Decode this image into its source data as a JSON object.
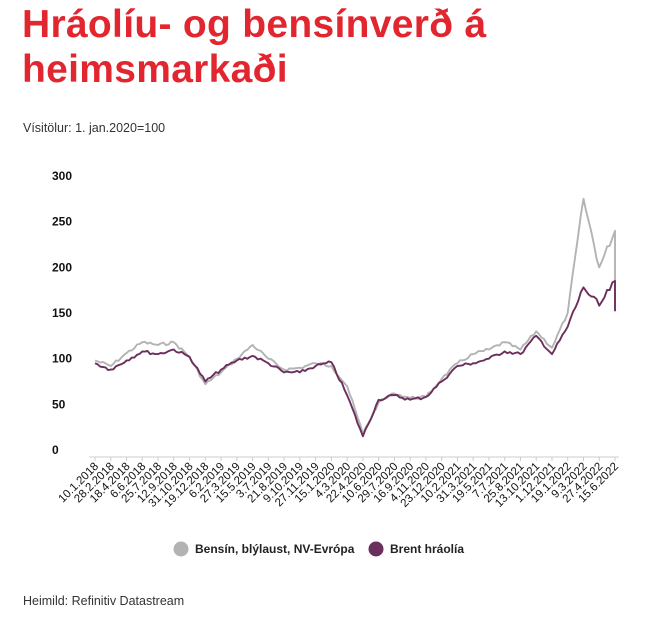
{
  "header": {
    "title": "Hráolíu- og bensínverð á heimsmarkaði",
    "subtitle": "Vísitölur: 1. jan.2020=100"
  },
  "footer": {
    "source": "Heimild: Refinitiv Datastream"
  },
  "colors": {
    "title": "#e2262f",
    "petrol": "#b3b3b3",
    "brent": "#6b2f5b",
    "axis": "#cccccc"
  },
  "chart_data": {
    "type": "line",
    "ylim": [
      0,
      300
    ],
    "yticks": [
      "0",
      "50",
      "100",
      "150",
      "200",
      "250",
      "300"
    ],
    "xlabel": "",
    "ylabel": "",
    "grid": false,
    "legend_position": "bottom-center",
    "x_tick_labels": [
      "10.1.2018",
      "28.2.2018",
      "18.4.2018",
      "6.6.2018",
      "25.7.2018",
      "12.9.2018",
      "31.10.2018",
      "19.12.2018",
      "6.2.2019",
      "27.3.2019",
      "15.5.2019",
      "3.7.2019",
      "21.8.2019",
      "9.10.2019",
      "27.11.2019",
      "15.1.2020",
      "4.3.2020",
      "22.4.2020",
      "10.6.2020",
      "29.7.2020",
      "16.9.2020",
      "4.11.2020",
      "23.12.2020",
      "10.2.2021",
      "31.3.2021",
      "19.5.2021",
      "7.7.2021",
      "25.8.2021",
      "13.10.2021",
      "1.12.2021",
      "19.1.2022",
      "9.3.2022",
      "27.4.2022",
      "15.6.2022"
    ],
    "series": [
      {
        "name": "Bensín, blýlaust, NV-Evrópa",
        "color": "#b3b3b3",
        "points": [
          [
            "10.1.2018",
            98
          ],
          [
            "28.2.2018",
            92
          ],
          [
            "18.4.2018",
            106
          ],
          [
            "6.6.2018",
            118
          ],
          [
            "25.7.2018",
            115
          ],
          [
            "12.9.2018",
            118
          ],
          [
            "31.10.2018",
            102
          ],
          [
            "19.12.2018",
            72
          ],
          [
            "6.2.2019",
            85
          ],
          [
            "27.3.2019",
            100
          ],
          [
            "15.5.2019",
            115
          ],
          [
            "3.7.2019",
            100
          ],
          [
            "21.8.2019",
            88
          ],
          [
            "9.10.2019",
            90
          ],
          [
            "27.11.2019",
            95
          ],
          [
            "15.1.2020",
            92
          ],
          [
            "4.3.2020",
            70
          ],
          [
            "22.4.2020",
            18
          ],
          [
            "10.6.2020",
            52
          ],
          [
            "29.7.2020",
            62
          ],
          [
            "16.9.2020",
            57
          ],
          [
            "4.11.2020",
            58
          ],
          [
            "23.12.2020",
            78
          ],
          [
            "10.2.2021",
            95
          ],
          [
            "31.3.2021",
            105
          ],
          [
            "19.5.2021",
            110
          ],
          [
            "7.7.2021",
            118
          ],
          [
            "25.8.2021",
            110
          ],
          [
            "13.10.2021",
            130
          ],
          [
            "1.12.2021",
            112
          ],
          [
            "19.1.2022",
            150
          ],
          [
            "9.3.2022",
            275
          ],
          [
            "27.4.2022",
            200
          ],
          [
            "15.6.2022",
            240
          ],
          [
            "15.6.2022",
            165
          ]
        ]
      },
      {
        "name": "Brent hráolía",
        "color": "#6b2f5b",
        "points": [
          [
            "10.1.2018",
            95
          ],
          [
            "28.2.2018",
            88
          ],
          [
            "18.4.2018",
            98
          ],
          [
            "6.6.2018",
            108
          ],
          [
            "25.7.2018",
            105
          ],
          [
            "12.9.2018",
            110
          ],
          [
            "31.10.2018",
            102
          ],
          [
            "19.12.2018",
            75
          ],
          [
            "6.2.2019",
            88
          ],
          [
            "27.3.2019",
            98
          ],
          [
            "15.5.2019",
            103
          ],
          [
            "3.7.2019",
            95
          ],
          [
            "21.8.2019",
            85
          ],
          [
            "9.10.2019",
            85
          ],
          [
            "27.11.2019",
            92
          ],
          [
            "15.1.2020",
            96
          ],
          [
            "4.3.2020",
            60
          ],
          [
            "22.4.2020",
            15
          ],
          [
            "10.6.2020",
            55
          ],
          [
            "29.7.2020",
            60
          ],
          [
            "16.9.2020",
            55
          ],
          [
            "4.11.2020",
            58
          ],
          [
            "23.12.2020",
            75
          ],
          [
            "10.2.2021",
            92
          ],
          [
            "31.3.2021",
            95
          ],
          [
            "19.5.2021",
            100
          ],
          [
            "7.7.2021",
            108
          ],
          [
            "25.8.2021",
            105
          ],
          [
            "13.10.2021",
            125
          ],
          [
            "1.12.2021",
            105
          ],
          [
            "19.1.2022",
            135
          ],
          [
            "9.3.2022",
            178
          ],
          [
            "27.4.2022",
            158
          ],
          [
            "15.6.2022",
            185
          ],
          [
            "15.6.2022",
            152
          ]
        ]
      }
    ]
  }
}
